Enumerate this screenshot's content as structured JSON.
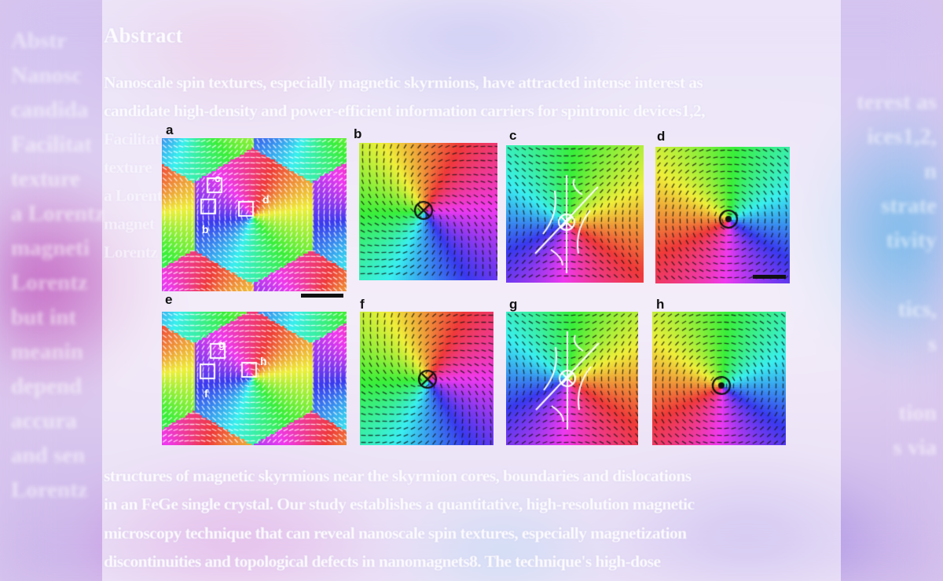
{
  "abstract": {
    "title": "Abstract",
    "lines_top": [
      "Nanoscale spin textures, especially magnetic skyrmions, have attracted intense interest as",
      "candidate high-density and power-efficient information carriers for spintronic devices1,2,"
    ],
    "lines_partial": [
      "Facilitat",
      "texture",
      "a Lorent",
      "magnet",
      "Lorentz"
    ],
    "lines_bottom": [
      "structures of magnetic skyrmions near the skyrmion cores, boundaries and dislocations",
      "in an FeGe single crystal. Our study establishes a quantitative, high-resolution magnetic",
      "microscopy technique that can reveal nanoscale spin textures, especially magnetization",
      "discontinuities and topological defects in nanomagnets8. The technique's high-dose"
    ]
  },
  "ghost_left": [
    "Abstr",
    "Nanosc",
    "candida",
    "Facilitat",
    "texture",
    "a Lorentz",
    "magneti",
    "Lorentz",
    "but int",
    "meanin",
    "depend",
    "accura",
    "and sen",
    "Lorentz"
  ],
  "ghost_right": [
    "terest as",
    "ices1,2,",
    "n",
    "strate",
    "tivity",
    "",
    "tics,",
    "s",
    "",
    "tion",
    "s via"
  ],
  "figure": {
    "panel_labels": [
      "a",
      "b",
      "c",
      "d",
      "e",
      "f",
      "g",
      "h"
    ],
    "inset_labels": [
      "b",
      "c",
      "d",
      "f",
      "g",
      "h"
    ]
  }
}
